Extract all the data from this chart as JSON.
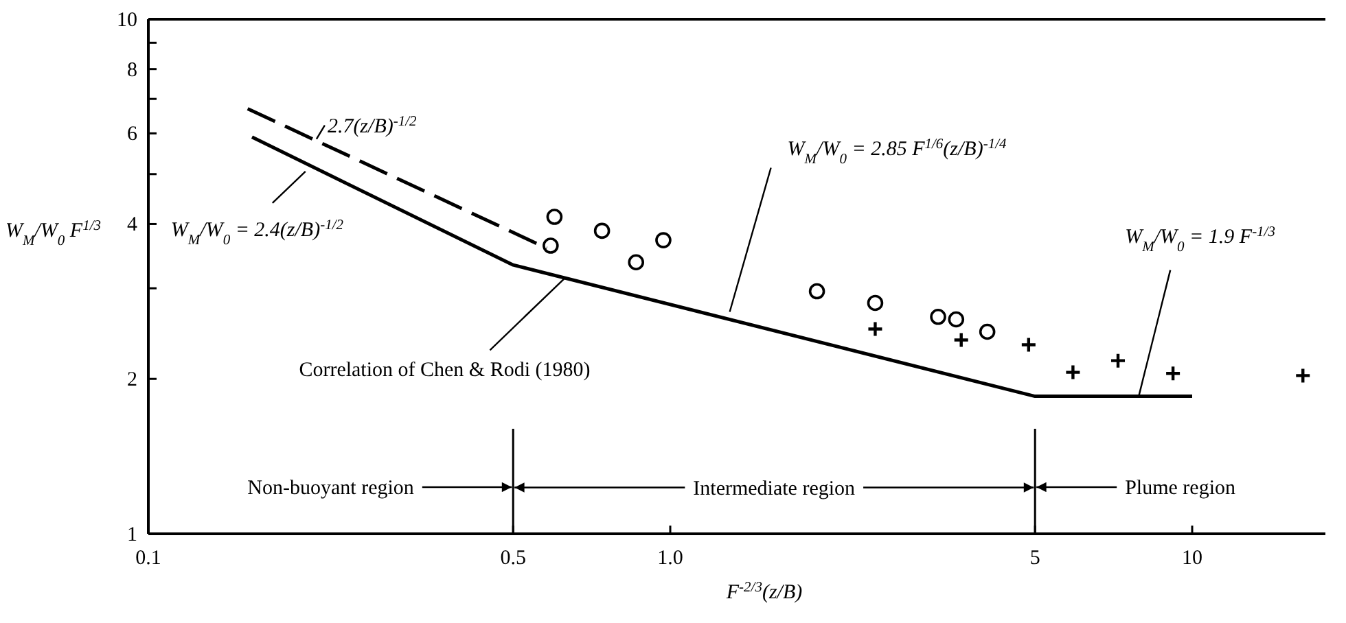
{
  "chart_data": {
    "type": "scatter",
    "xlabel": "F$^{-2/3}$(z/B)",
    "ylabel": "W$_{M}$/W$_{0}$ F$^{1/3}$",
    "log": "xy",
    "grid": false,
    "xlim": [
      0.1,
      18
    ],
    "xticks": [
      0.1,
      0.5,
      {
        "value": 1,
        "label": "1.0"
      },
      5,
      10
    ],
    "ylim": [
      1,
      10
    ],
    "yticks": [
      1,
      2,
      {
        "value": 3,
        "label": null
      },
      4,
      {
        "value": 5,
        "label": null
      },
      6,
      {
        "value": 7,
        "label": null
      },
      8,
      {
        "value": 9,
        "label": null
      },
      10
    ],
    "series": [
      {
        "type": "line",
        "color": "#000000",
        "line_style": "solid",
        "x": [
          0.158,
          0.5,
          5,
          10
        ],
        "values": [
          5.9,
          3.33,
          1.85,
          1.85
        ]
      },
      {
        "type": "line",
        "color": "#000000",
        "line_style": "dashed",
        "x": [
          0.155,
          0.58
        ],
        "values": [
          6.7,
          3.59
        ]
      },
      {
        "color": "#000000",
        "marker": "circle",
        "x": [
          0.6,
          0.59,
          0.74,
          0.86,
          0.97,
          1.91,
          2.47,
          3.26,
          3.53,
          4.05
        ],
        "values": [
          4.13,
          3.63,
          3.88,
          3.37,
          3.72,
          2.96,
          2.81,
          2.64,
          2.61,
          2.47
        ]
      },
      {
        "color": "#000000",
        "marker": "cross",
        "x": [
          2.47,
          3.61,
          4.86,
          5.91,
          7.21,
          9.19,
          16.3
        ],
        "values": [
          2.5,
          2.38,
          2.33,
          2.06,
          2.17,
          2.05,
          2.03
        ]
      }
    ],
    "ref_lines": [
      {
        "axis": "x",
        "value": 0.5,
        "color": "#000000"
      },
      {
        "axis": "x",
        "value": 5,
        "color": "#000000"
      }
    ],
    "annotations": [
      {
        "text": "2.7(z/B)$^{-1/2}$",
        "x": 0.21,
        "y": 5.85
      },
      {
        "text": "W$_{M}$/W$_{0}$ = 2.4(z/B)$^{-1/2}$",
        "x": 0.2,
        "y": 5.06
      },
      {
        "text": "Correlation of Chen & Rodi (1980)",
        "x": 0.63,
        "y": 3.15
      },
      {
        "text": "W$_{M}$/W$_{0}$ = 2.85 F$^{1/6}$(z/B)$^{-1/4}$",
        "x": 1.3,
        "y": 2.7
      },
      {
        "text": "W$_{M}$/W$_{0}$ = 1.9 F$^{-1/3}$",
        "x": 7.9,
        "y": 1.85
      },
      "Non-buoyant region",
      {
        "text": "Intermediate region",
        "x": 0.5,
        "y": 1.23
      },
      "Plume region"
    ]
  }
}
